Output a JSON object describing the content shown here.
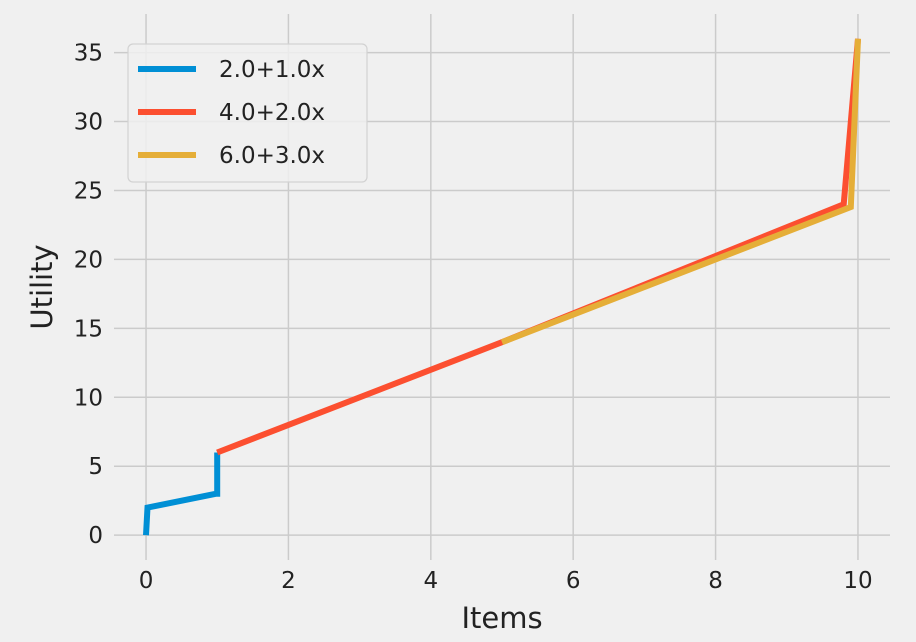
{
  "chart_data": {
    "type": "line",
    "xlabel": "Items",
    "ylabel": "Utility",
    "xlim": [
      -0.45,
      10.45
    ],
    "ylim": [
      -1.8,
      37.8
    ],
    "xticks": [
      0,
      2,
      4,
      6,
      8,
      10
    ],
    "yticks": [
      0,
      5,
      10,
      15,
      20,
      25,
      30,
      35
    ],
    "grid": true,
    "legend_position": "top-left",
    "series": [
      {
        "name": "2.0+1.0x",
        "color": "#008fd5",
        "x": [
          0,
          0.02,
          0.98,
          1.0,
          1.0
        ],
        "y": [
          0,
          2.0,
          3.0,
          3.0,
          6.0
        ]
      },
      {
        "name": "4.0+2.0x",
        "color": "#fc4f30",
        "x": [
          1.0,
          5.0,
          9.8,
          10.0
        ],
        "y": [
          6.0,
          14.0,
          24.0,
          36.0
        ]
      },
      {
        "name": "6.0+3.0x",
        "color": "#e5ae38",
        "x": [
          5.0,
          9.9,
          10.0
        ],
        "y": [
          14.0,
          23.8,
          36.0
        ]
      }
    ]
  }
}
